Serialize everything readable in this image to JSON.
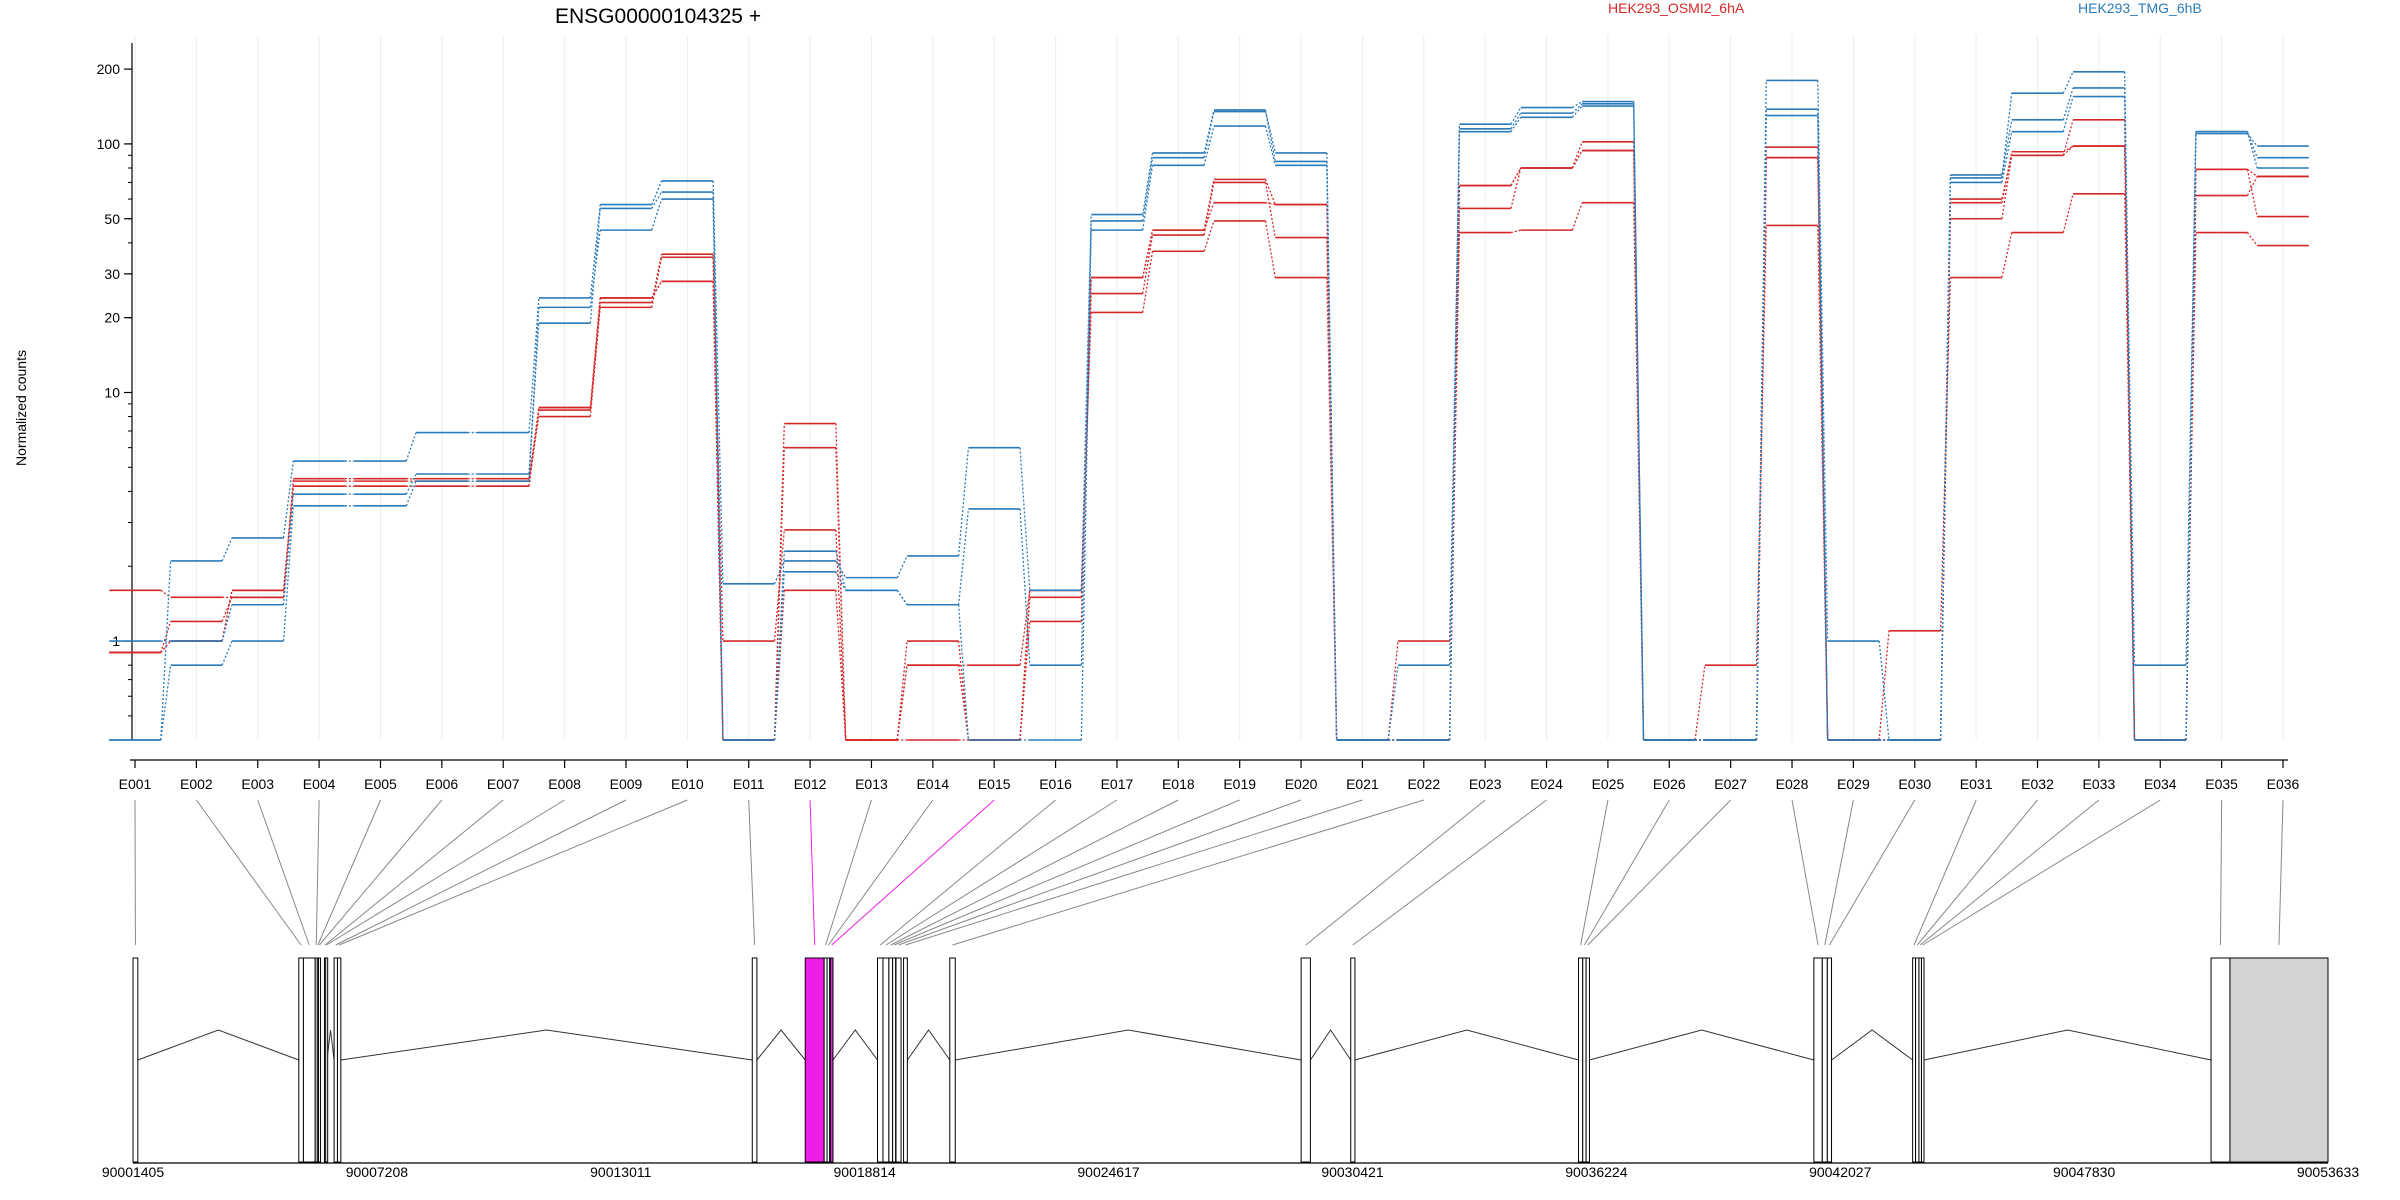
{
  "chart_data": {
    "type": "line",
    "title": "ENSG00000104325 +",
    "ylabel": "Normalized counts",
    "yscale": "log",
    "yticks": [
      1,
      10,
      20,
      30,
      50,
      100,
      200
    ],
    "ylim": [
      0.4,
      250
    ],
    "floor_value": 0.4,
    "grid": true,
    "legend": "top",
    "colors": {
      "OSMI2": "#d62728",
      "TMG": "#2b7bba",
      "highlight": "#ee1ee9",
      "box": "#000000",
      "fill_gray": "#d3d3d3",
      "connector": "#888888"
    },
    "categories": [
      "E001",
      "E002",
      "E003",
      "E004",
      "E005",
      "E006",
      "E007",
      "E008",
      "E009",
      "E010",
      "E011",
      "E012",
      "E013",
      "E014",
      "E015",
      "E016",
      "E017",
      "E018",
      "E019",
      "E020",
      "E021",
      "E022",
      "E023",
      "E024",
      "E025",
      "E026",
      "E027",
      "E028",
      "E029",
      "E030",
      "E031",
      "E032",
      "E033",
      "E034",
      "E035",
      "E036"
    ],
    "series": [
      {
        "name": "HEK293_OSMI2_6hA",
        "group": "OSMI2",
        "values": [
          1.6,
          1.5,
          1.5,
          4.5,
          4.5,
          4.5,
          4.5,
          8.5,
          23,
          36,
          1.0,
          2.8,
          0.4,
          0.4,
          0.4,
          1.5,
          25,
          43,
          70,
          42,
          0.4,
          1.0,
          55,
          80,
          102,
          0.4,
          0.4,
          97,
          0.4,
          0.4,
          60,
          90,
          125,
          0.4,
          62,
          74
        ]
      },
      {
        "name": "HEK293_OSMI2_6hA",
        "group": "OSMI2",
        "values": [
          0.9,
          1.2,
          1.5,
          4.4,
          4.4,
          4.4,
          4.4,
          8.0,
          22,
          35,
          0.4,
          6.0,
          0.4,
          1.0,
          0.4,
          1.2,
          29,
          45,
          58,
          57,
          0.4,
          0.4,
          68,
          80,
          94,
          0.4,
          0.4,
          88,
          0.4,
          0.4,
          58,
          93,
          98,
          0.4,
          79,
          51
        ]
      },
      {
        "name": "HEK293_OSMI2_6hA",
        "group": "OSMI2",
        "values": [
          0.9,
          1.0,
          1.6,
          4.2,
          4.2,
          4.2,
          4.2,
          8.7,
          24,
          28,
          0.4,
          1.6,
          0.4,
          0.8,
          0.8,
          1.6,
          21,
          37,
          49,
          29,
          0.4,
          0.4,
          44,
          45,
          58,
          0.4,
          0.8,
          47,
          0.4,
          1.1,
          29,
          44,
          63,
          0.4,
          44,
          39
        ]
      },
      {
        "name": "HEK293_OSMI2_6hA",
        "group": "OSMI2",
        "values": [
          0.9,
          1.0,
          1.6,
          4.2,
          4.2,
          4.2,
          4.2,
          8.7,
          24,
          28,
          0.4,
          7.5,
          0.4,
          0.8,
          0.4,
          1.6,
          29,
          45,
          72,
          57,
          0.4,
          0.4,
          68,
          80,
          94,
          0.4,
          0.4,
          88,
          0.4,
          0.4,
          50,
          90,
          98,
          0.4,
          79,
          74
        ]
      },
      {
        "name": "HEK293_TMG_6hB",
        "group": "TMG",
        "values": [
          0.4,
          2.1,
          2.6,
          5.3,
          5.3,
          6.9,
          6.9,
          24,
          57,
          71,
          1.7,
          2.1,
          1.8,
          2.2,
          6.0,
          1.6,
          52,
          92,
          137,
          92,
          0.4,
          0.4,
          120,
          140,
          148,
          0.4,
          0.4,
          180,
          1.0,
          0.4,
          73,
          160,
          195,
          0.4,
          110,
          98
        ]
      },
      {
        "name": "HEK293_TMG_6hB",
        "group": "TMG",
        "values": [
          0.4,
          0.8,
          1.0,
          3.5,
          3.5,
          4.4,
          4.4,
          22,
          45,
          60,
          0.4,
          2.3,
          1.6,
          1.4,
          3.4,
          0.8,
          49,
          88,
          135,
          85,
          0.4,
          0.8,
          115,
          133,
          145,
          0.4,
          0.4,
          138,
          0.4,
          0.4,
          75,
          125,
          168,
          0.8,
          112,
          88
        ]
      },
      {
        "name": "HEK293_TMG_6hB",
        "group": "TMG",
        "values": [
          1.0,
          1.0,
          1.4,
          3.9,
          3.9,
          4.7,
          4.7,
          19,
          55,
          64,
          0.4,
          1.9,
          1.6,
          1.4,
          0.4,
          0.4,
          45,
          82,
          118,
          82,
          0.4,
          0.4,
          112,
          128,
          142,
          0.4,
          0.4,
          130,
          0.4,
          0.4,
          70,
          112,
          155,
          0.4,
          112,
          80
        ]
      }
    ],
    "legend_entries": [
      "HEK293_OSMI2_6hA",
      "HEK293_TMG_6hB"
    ],
    "genome_axis": {
      "ticks": [
        90001405,
        90007208,
        90013011,
        90018814,
        90024617,
        90030421,
        90036224,
        90042027,
        90047830,
        90053633
      ],
      "range": [
        90001405,
        90053633
      ]
    },
    "gene_model": {
      "exons": [
        {
          "id": "E001",
          "start": 90001405,
          "end": 90001520
        },
        {
          "id": "E002",
          "start": 90005350,
          "end": 90005460
        },
        {
          "id": "E003",
          "start": 90005460,
          "end": 90005740
        },
        {
          "id": "E004",
          "start": 90005740,
          "end": 90005790
        },
        {
          "id": "E005",
          "start": 90005790,
          "end": 90005820
        },
        {
          "id": "E006",
          "start": 90005820,
          "end": 90005860
        },
        {
          "id": "E007",
          "start": 90005960,
          "end": 90005990
        },
        {
          "id": "E008",
          "start": 90005990,
          "end": 90006020
        },
        {
          "id": "E009",
          "start": 90006190,
          "end": 90006270
        },
        {
          "id": "E010",
          "start": 90006270,
          "end": 90006350
        },
        {
          "id": "E011",
          "start": 90016140,
          "end": 90016250
        },
        {
          "id": "E012",
          "start": 90017400,
          "end": 90017850
        },
        {
          "id": "E013",
          "start": 90017850,
          "end": 90017920
        },
        {
          "id": "E014",
          "start": 90017920,
          "end": 90017980
        },
        {
          "id": "E015",
          "start": 90018000,
          "end": 90018060
        },
        {
          "id": "E016",
          "start": 90019120,
          "end": 90019250
        },
        {
          "id": "E017",
          "start": 90019250,
          "end": 90019390
        },
        {
          "id": "E018",
          "start": 90019390,
          "end": 90019480
        },
        {
          "id": "E019",
          "start": 90019480,
          "end": 90019550
        },
        {
          "id": "E020",
          "start": 90019560,
          "end": 90019680
        },
        {
          "id": "E021",
          "start": 90019740,
          "end": 90019830
        },
        {
          "id": "E022",
          "start": 90020840,
          "end": 90020970
        },
        {
          "id": "E023",
          "start": 90029200,
          "end": 90029420
        },
        {
          "id": "E024",
          "start": 90030380,
          "end": 90030480
        },
        {
          "id": "E025",
          "start": 90035800,
          "end": 90035900
        },
        {
          "id": "E026",
          "start": 90035900,
          "end": 90035980
        },
        {
          "id": "E027",
          "start": 90035980,
          "end": 90036060
        },
        {
          "id": "E028",
          "start": 90041400,
          "end": 90041600
        },
        {
          "id": "E029",
          "start": 90041600,
          "end": 90041720
        },
        {
          "id": "E030",
          "start": 90041720,
          "end": 90041820
        },
        {
          "id": "E031",
          "start": 90043750,
          "end": 90043820
        },
        {
          "id": "E032",
          "start": 90043820,
          "end": 90043900
        },
        {
          "id": "E033",
          "start": 90043900,
          "end": 90043960
        },
        {
          "id": "E034",
          "start": 90043960,
          "end": 90044020
        },
        {
          "id": "E035",
          "start": 90050850,
          "end": 90051300
        },
        {
          "id": "E036",
          "start": 90051300,
          "end": 90053633
        }
      ],
      "highlighted": [
        "E012",
        "E015"
      ],
      "filled": [
        "E036"
      ]
    }
  }
}
